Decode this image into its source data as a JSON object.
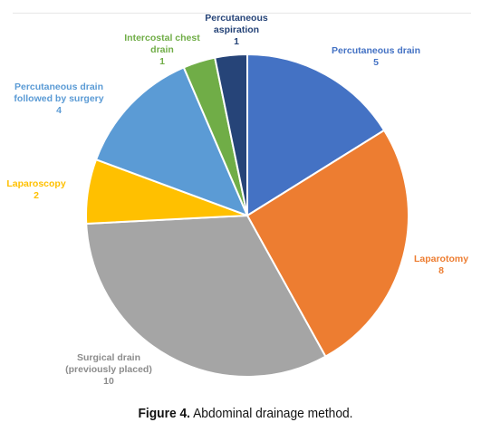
{
  "chart_data": {
    "type": "pie",
    "title": "",
    "total": 31,
    "slices": [
      {
        "label_lines": [
          "Percutaneous drain",
          "5"
        ],
        "name": "Percutaneous drain",
        "value": 5,
        "color": "#4472C4"
      },
      {
        "label_lines": [
          "Laparotomy",
          "8"
        ],
        "name": "Laparotomy",
        "value": 8,
        "color": "#ED7D31"
      },
      {
        "label_lines": [
          "Surgical drain",
          "(previously placed)",
          "10"
        ],
        "name": "Surgical drain (previously placed)",
        "value": 10,
        "color": "#A5A5A5"
      },
      {
        "label_lines": [
          "Laparoscopy",
          "2"
        ],
        "name": "Laparoscopy",
        "value": 2,
        "color": "#FFC000"
      },
      {
        "label_lines": [
          "Percutaneous drain",
          "followed by surgery",
          "4"
        ],
        "name": "Percutaneous drain followed by surgery",
        "value": 4,
        "color": "#5B9BD5"
      },
      {
        "label_lines": [
          "Intercostal chest",
          "drain",
          "1"
        ],
        "name": "Intercostal chest drain",
        "value": 1,
        "color": "#70AD47"
      },
      {
        "label_lines": [
          "Percutaneous",
          "aspiration",
          "1"
        ],
        "name": "Percutaneous aspiration",
        "value": 1,
        "color": "#264478"
      }
    ],
    "start_angle_deg": 0,
    "direction": "clockwise"
  },
  "caption": {
    "prefix": "Figure 4.",
    "text": " Abdominal drainage method."
  }
}
